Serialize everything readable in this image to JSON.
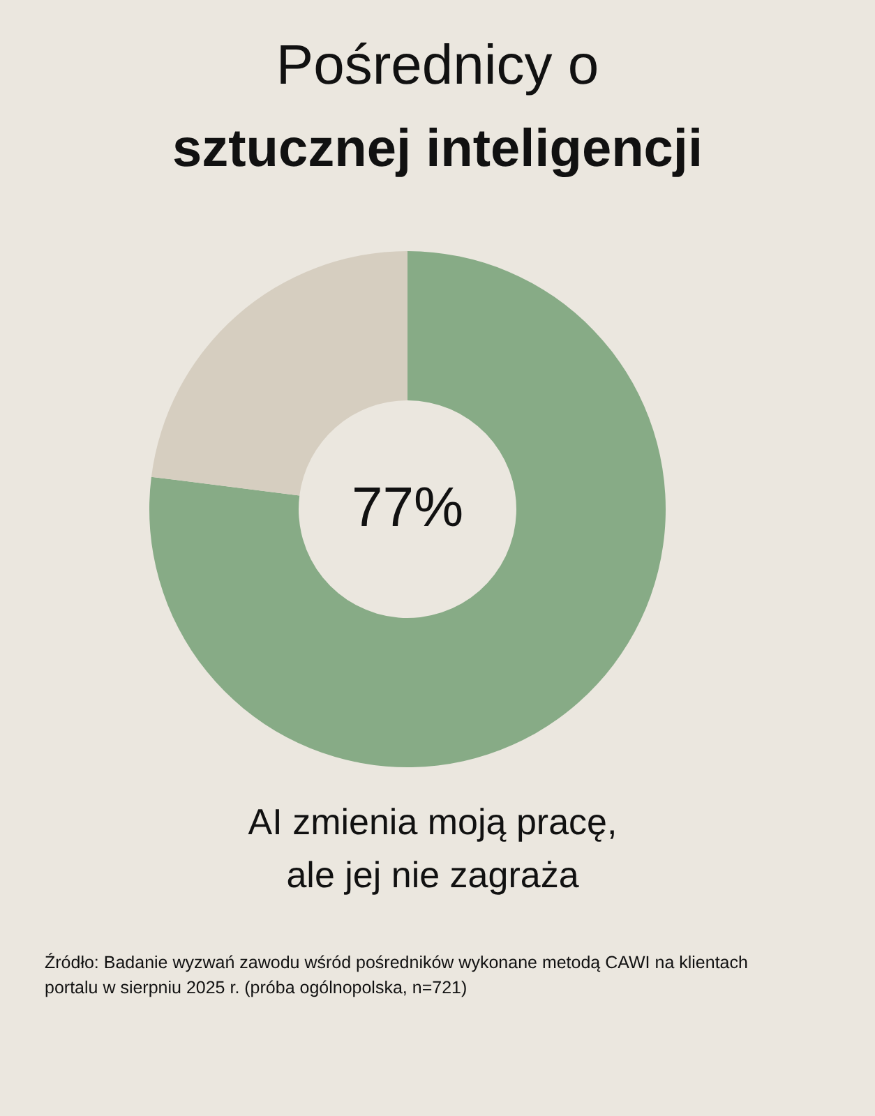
{
  "chart_data": {
    "type": "donut",
    "title": "Pośrednicy o",
    "subtitle": "sztucznej inteligencji",
    "categories": [
      null,
      null
    ],
    "values": [
      77,
      23
    ],
    "colors": [
      "#87ab86",
      "#d6cec0"
    ],
    "value_labels": [
      "77%",
      null
    ],
    "annotations": [
      "AI zmienia moją pracę, ale jej nie zagraża",
      "Źródło: Badanie wyzwań zawodu wśród pośredników wykonane metodą CAWI na klientach portalu w sierpniu 2025 r. (próba ogólnopolska, n=721)"
    ]
  }
}
